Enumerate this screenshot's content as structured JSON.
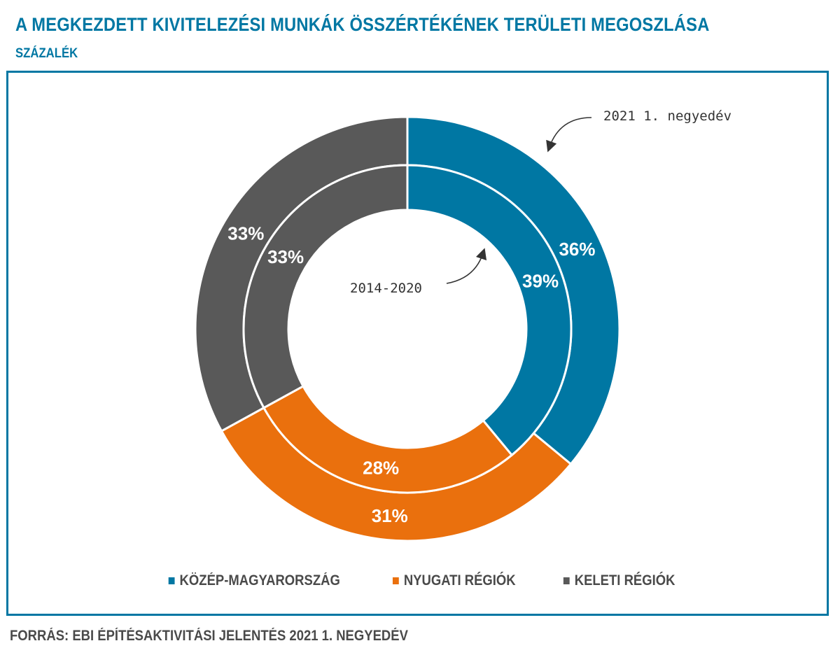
{
  "header": {
    "title": "A MEGKEZDETT KIVITELEZÉSI MUNKÁK ÖSSZÉRTÉKÉNEK TERÜLETI MEGOSZLÁSA",
    "subtitle": "SZÁZALÉK"
  },
  "footer": {
    "source": "FORRÁS: EBI ÉPÍTÉSAKTIVITÁSI JELENTÉS 2021 1. NEGYEDÉV"
  },
  "colors": {
    "title": "#0077a3",
    "frame": "#0077a3"
  },
  "chart_data": {
    "type": "donut",
    "categories": [
      "KÖZÉP-MAGYARORSZÁG",
      "NYUGATI RÉGIÓK",
      "KELETI RÉGIÓK"
    ],
    "colors": [
      "#0077a3",
      "#ea700d",
      "#595959"
    ],
    "series": [
      {
        "name": "2021 1. negyedév",
        "ring": "outer",
        "values": [
          36,
          31,
          33
        ],
        "labels": [
          "36%",
          "31%",
          "33%"
        ]
      },
      {
        "name": "2014-2020",
        "ring": "inner",
        "values": [
          39,
          28,
          33
        ],
        "labels": [
          "39%",
          "28%",
          "33%"
        ]
      }
    ],
    "legend_position": "bottom"
  }
}
